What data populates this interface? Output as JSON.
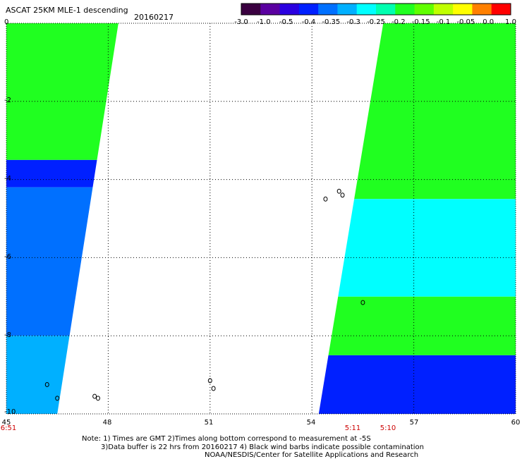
{
  "header": {
    "title": "ASCAT 25KM MLE-1 descending",
    "date": "20160217"
  },
  "colorbar": {
    "tick_labels": [
      "-3.0",
      "-1.0",
      "-0.5",
      "-0.4",
      "-0.35",
      "-0.3",
      "-0.25",
      "-0.2",
      "-0.15",
      "-0.1",
      "-0.05",
      "0.0",
      "1.0"
    ],
    "colors": [
      "#3a0040",
      "#5a00a0",
      "#2a00e0",
      "#0020ff",
      "#0070ff",
      "#00b0ff",
      "#00ffff",
      "#00ffb0",
      "#20ff20",
      "#60ff00",
      "#c0ff00",
      "#ffff00",
      "#ff8000",
      "#ff0000"
    ]
  },
  "map": {
    "x_range": [
      45,
      60
    ],
    "y_range": [
      -10,
      0
    ],
    "x_ticks": [
      "45",
      "48",
      "51",
      "54",
      "57",
      "60"
    ],
    "y_ticks": [
      "0",
      "-2",
      "-4",
      "-6",
      "-8",
      "-10"
    ],
    "time_labels": [
      "6:51",
      "5:11",
      "5:10"
    ],
    "time_positions_lon": [
      45,
      54.4,
      55.4
    ],
    "swaths": [
      {
        "name": "west-swath",
        "lon_edges_top": [
          45,
          48.3
        ],
        "lon_edges_bottom": [
          45,
          46.5
        ],
        "regions": [
          {
            "lat": [
              0,
              -3.5
            ],
            "value": -0.18
          },
          {
            "lat": [
              -3.5,
              -4.2
            ],
            "value": -0.45
          },
          {
            "lat": [
              -4.2,
              -8
            ],
            "value": -0.38
          },
          {
            "lat": [
              -8,
              -10
            ],
            "value": -0.33
          }
        ]
      },
      {
        "name": "east-swath",
        "lon_edges_top": [
          56.1,
          60
        ],
        "lon_edges_bottom": [
          54.2,
          60
        ],
        "regions": [
          {
            "lat": [
              0,
              -4.5
            ],
            "value": -0.17
          },
          {
            "lat": [
              -4.5,
              -7
            ],
            "value": -0.27
          },
          {
            "lat": [
              -7,
              -8.5
            ],
            "value": -0.17
          },
          {
            "lat": [
              -8.5,
              -10
            ],
            "value": -0.42
          }
        ]
      }
    ]
  },
  "footer": {
    "note_line1": "Note: 1) Times are GMT 2)Times along bottom correspond to measurement at -5S",
    "note_line2": "3)Data buffer is 22 hrs from 20160217 4) Black wind barbs indicate possible contamination",
    "credit": "NOAA/NESDIS/Center for Satellite Applications and Research"
  }
}
